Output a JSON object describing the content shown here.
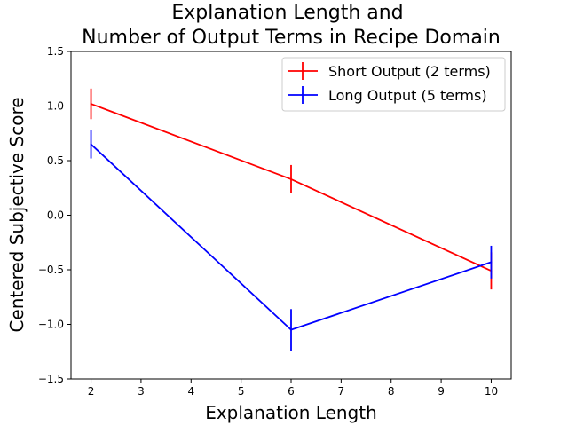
{
  "chart_data": {
    "type": "line",
    "title_lines": [
      "Explanation Length and",
      "Number of Output Terms in Recipe Domain"
    ],
    "xlabel": "Explanation Length",
    "ylabel": "Centered Subjective Score",
    "x": [
      2,
      6,
      10
    ],
    "xlim": [
      1.6,
      10.4
    ],
    "ylim": [
      -1.5,
      1.5
    ],
    "xticks": [
      2,
      3,
      4,
      5,
      6,
      7,
      8,
      9,
      10
    ],
    "yticks": [
      -1.5,
      -1.0,
      -0.5,
      0.0,
      0.5,
      1.0,
      1.5
    ],
    "ytick_labels": [
      "−1.5",
      "−1.0",
      "−0.5",
      "0.0",
      "0.5",
      "1.0",
      "1.5"
    ],
    "grid": false,
    "legend_placement": "top-right",
    "series": [
      {
        "name": "Short Output (2 terms)",
        "color": "#ff0000",
        "values": [
          1.02,
          0.33,
          -0.51
        ],
        "errors": [
          0.14,
          0.13,
          0.17
        ]
      },
      {
        "name": "Long Output (5 terms)",
        "color": "#0000ff",
        "values": [
          0.65,
          -1.05,
          -0.43
        ],
        "errors": [
          0.13,
          0.19,
          0.15
        ]
      }
    ]
  }
}
